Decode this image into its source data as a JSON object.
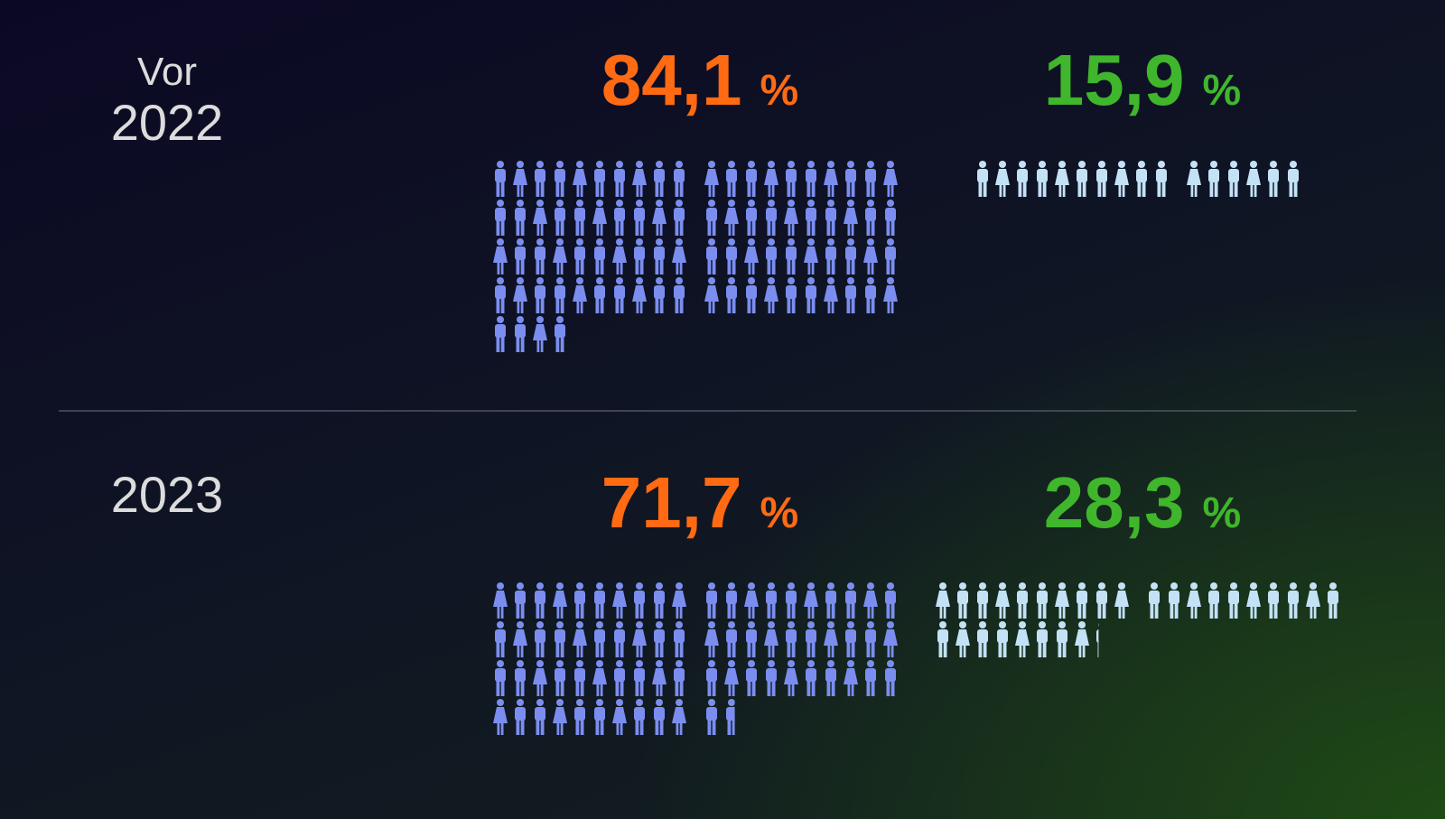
{
  "chart_data": [
    {
      "type": "pictogram",
      "title": "Vor\n2022",
      "unit": "%",
      "values": [
        84.1,
        15.9
      ],
      "value_labels": [
        "84,1",
        "15,9"
      ],
      "colors": [
        "#ff6a13",
        "#3fb62c"
      ],
      "icon_colors": [
        "#7b8ef0",
        "#c4e2f6"
      ]
    },
    {
      "type": "pictogram",
      "title": "2023",
      "unit": "%",
      "values": [
        71.7,
        28.3
      ],
      "value_labels": [
        "71,7",
        "28,3"
      ],
      "colors": [
        "#ff6a13",
        "#3fb62c"
      ],
      "icon_colors": [
        "#7b8ef0",
        "#c4e2f6"
      ]
    }
  ]
}
